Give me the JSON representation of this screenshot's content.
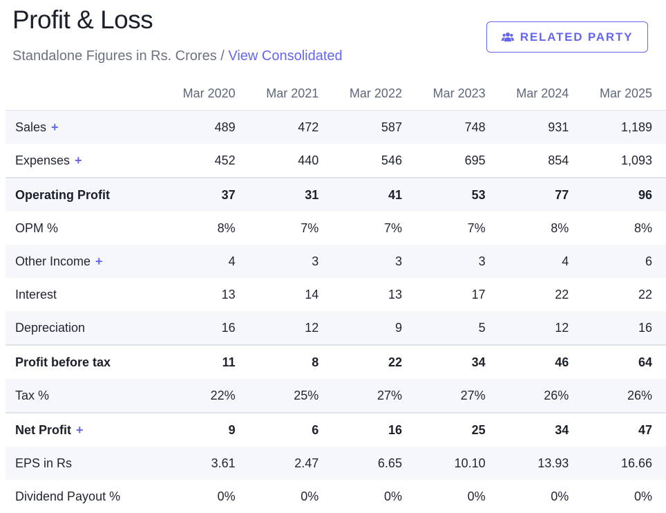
{
  "header": {
    "title": "Profit & Loss",
    "subtitle_prefix": "Standalone Figures in Rs. Crores / ",
    "consolidated_link": "View Consolidated",
    "related_party_label": "RELATED PARTY",
    "related_party_icon": "users-icon",
    "accent_color": "#6366f1"
  },
  "table": {
    "columns": [
      "Mar 2020",
      "Mar 2021",
      "Mar 2022",
      "Mar 2023",
      "Mar 2024",
      "Mar 2025"
    ],
    "rows": [
      {
        "label": "Sales",
        "expandable": true,
        "bold": false,
        "stripe": true,
        "border_top": false,
        "values": [
          "489",
          "472",
          "587",
          "748",
          "931",
          "1,189"
        ]
      },
      {
        "label": "Expenses",
        "expandable": true,
        "bold": false,
        "stripe": false,
        "border_top": false,
        "values": [
          "452",
          "440",
          "546",
          "695",
          "854",
          "1,093"
        ]
      },
      {
        "label": "Operating Profit",
        "expandable": false,
        "bold": true,
        "stripe": true,
        "border_top": true,
        "values": [
          "37",
          "31",
          "41",
          "53",
          "77",
          "96"
        ]
      },
      {
        "label": "OPM %",
        "expandable": false,
        "bold": false,
        "stripe": false,
        "border_top": false,
        "values": [
          "8%",
          "7%",
          "7%",
          "7%",
          "8%",
          "8%"
        ]
      },
      {
        "label": "Other Income",
        "expandable": true,
        "bold": false,
        "stripe": true,
        "border_top": false,
        "values": [
          "4",
          "3",
          "3",
          "3",
          "4",
          "6"
        ]
      },
      {
        "label": "Interest",
        "expandable": false,
        "bold": false,
        "stripe": false,
        "border_top": false,
        "values": [
          "13",
          "14",
          "13",
          "17",
          "22",
          "22"
        ]
      },
      {
        "label": "Depreciation",
        "expandable": false,
        "bold": false,
        "stripe": true,
        "border_top": false,
        "values": [
          "16",
          "12",
          "9",
          "5",
          "12",
          "16"
        ]
      },
      {
        "label": "Profit before tax",
        "expandable": false,
        "bold": true,
        "stripe": false,
        "border_top": true,
        "values": [
          "11",
          "8",
          "22",
          "34",
          "46",
          "64"
        ]
      },
      {
        "label": "Tax %",
        "expandable": false,
        "bold": false,
        "stripe": true,
        "border_top": false,
        "values": [
          "22%",
          "25%",
          "27%",
          "27%",
          "26%",
          "26%"
        ]
      },
      {
        "label": "Net Profit",
        "expandable": true,
        "bold": true,
        "stripe": false,
        "border_top": true,
        "values": [
          "9",
          "6",
          "16",
          "25",
          "34",
          "47"
        ]
      },
      {
        "label": "EPS in Rs",
        "expandable": false,
        "bold": false,
        "stripe": true,
        "border_top": false,
        "values": [
          "3.61",
          "2.47",
          "6.65",
          "10.10",
          "13.93",
          "16.66"
        ]
      },
      {
        "label": "Dividend Payout %",
        "expandable": false,
        "bold": false,
        "stripe": false,
        "border_top": false,
        "values": [
          "0%",
          "0%",
          "0%",
          "0%",
          "0%",
          "0%"
        ]
      }
    ]
  }
}
